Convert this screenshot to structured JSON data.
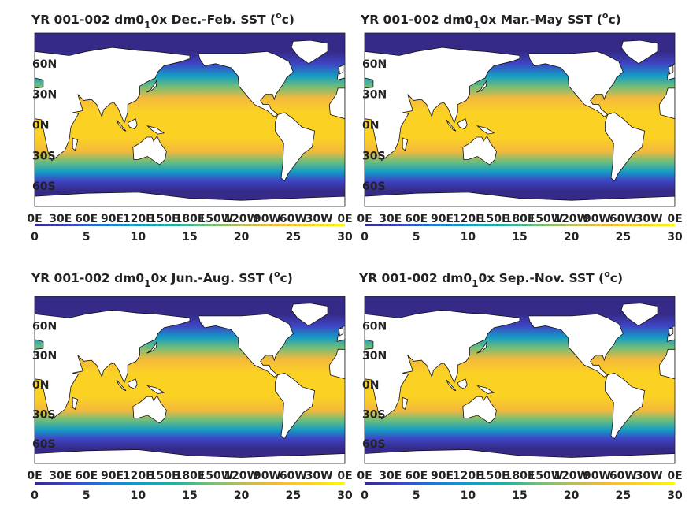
{
  "colors": {
    "ocean_scale": [
      "#352a87",
      "#3e44c3",
      "#1f78d4",
      "#149cc4",
      "#21afa0",
      "#6ebd7b",
      "#b7bd5f",
      "#f4b93c",
      "#fbd224",
      "#f9fb0e"
    ],
    "land": "#ffffff",
    "coast": "#111111"
  },
  "chart_data": [
    {
      "type": "heatmap",
      "title_main": "YR 001-002 dm0",
      "title_sub": "1",
      "title_rest": "0x Dec.-Feb. SST (",
      "title_sup": "o",
      "title_end": "c)",
      "season": "Dec.-Feb.",
      "xticks": [
        "0E",
        "30E",
        "60E",
        "90E",
        "120E",
        "150E",
        "180E",
        "150W",
        "120W",
        "90W",
        "60W",
        "30W",
        "0E"
      ],
      "yticks": [
        "60N",
        "30N",
        "0N",
        "30S",
        "60S"
      ],
      "ytick_values": [
        60,
        30,
        0,
        -30,
        -60
      ],
      "xlim": [
        0,
        360
      ],
      "ylim": [
        -80,
        90
      ],
      "colorbar_ticks": [
        "0",
        "5",
        "10",
        "15",
        "20",
        "25",
        "30"
      ],
      "colorbar_range": [
        0,
        30
      ]
    },
    {
      "type": "heatmap",
      "title_main": "YR 001-002 dm0",
      "title_sub": "1",
      "title_rest": "0x Mar.-May SST (",
      "title_sup": "o",
      "title_end": "c)",
      "season": "Mar.-May",
      "xticks": [
        "0E",
        "30E",
        "60E",
        "90E",
        "120E",
        "150E",
        "180E",
        "150W",
        "120W",
        "90W",
        "60W",
        "30W",
        "0E"
      ],
      "yticks": [
        "60N",
        "30N",
        "0N",
        "30S",
        "60S"
      ],
      "ytick_values": [
        60,
        30,
        0,
        -30,
        -60
      ],
      "xlim": [
        0,
        360
      ],
      "ylim": [
        -80,
        90
      ],
      "colorbar_ticks": [
        "0",
        "5",
        "10",
        "15",
        "20",
        "25",
        "30"
      ],
      "colorbar_range": [
        0,
        30
      ]
    },
    {
      "type": "heatmap",
      "title_main": "YR 001-002 dm0",
      "title_sub": "1",
      "title_rest": "0x Jun.-Aug. SST (",
      "title_sup": "o",
      "title_end": "c)",
      "season": "Jun.-Aug.",
      "xticks": [
        "0E",
        "30E",
        "60E",
        "90E",
        "120E",
        "150E",
        "180E",
        "150W",
        "120W",
        "90W",
        "60W",
        "30W",
        "0E"
      ],
      "yticks": [
        "60N",
        "30N",
        "0N",
        "30S",
        "60S"
      ],
      "ytick_values": [
        60,
        30,
        0,
        -30,
        -60
      ],
      "xlim": [
        0,
        360
      ],
      "ylim": [
        -80,
        90
      ],
      "colorbar_ticks": [
        "0",
        "5",
        "10",
        "15",
        "20",
        "25",
        "30"
      ],
      "colorbar_range": [
        0,
        30
      ]
    },
    {
      "type": "heatmap",
      "title_main": "YR 001-002 dm0",
      "title_sub": "1",
      "title_rest": "0x Sep.-Nov. SST (",
      "title_sup": "o",
      "title_end": "c)",
      "season": "Sep.-Nov.",
      "xticks": [
        "0E",
        "30E",
        "60E",
        "90E",
        "120E",
        "150E",
        "180E",
        "150W",
        "120W",
        "90W",
        "60W",
        "30W",
        "0E"
      ],
      "yticks": [
        "60N",
        "30N",
        "0N",
        "30S",
        "60S"
      ],
      "ytick_values": [
        60,
        30,
        0,
        -30,
        -60
      ],
      "xlim": [
        0,
        360
      ],
      "ylim": [
        -80,
        90
      ],
      "colorbar_ticks": [
        "0",
        "5",
        "10",
        "15",
        "20",
        "25",
        "30"
      ],
      "colorbar_range": [
        0,
        30
      ]
    }
  ]
}
